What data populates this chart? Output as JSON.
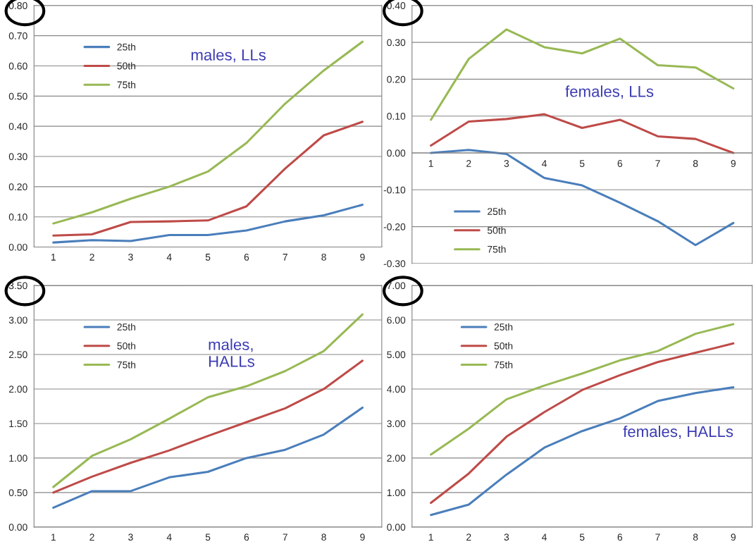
{
  "chart_data": [
    {
      "type": "line",
      "categories": [
        "1",
        "2",
        "3",
        "4",
        "5",
        "6",
        "7",
        "8",
        "9"
      ],
      "ylim": [
        0,
        0.8
      ],
      "yticks": [
        {
          "value": 0,
          "label": "0.00"
        },
        {
          "value": 0.1,
          "label": "0.10"
        },
        {
          "value": 0.2,
          "label": "0.20"
        },
        {
          "value": 0.3,
          "label": "0.30"
        },
        {
          "value": 0.4,
          "label": "0.40"
        },
        {
          "value": 0.5,
          "label": "0.50"
        },
        {
          "value": 0.6,
          "label": "0.60"
        },
        {
          "value": 0.7,
          "label": "0.70"
        },
        {
          "value": 0.8,
          "label": "0.80"
        }
      ],
      "grid": "y",
      "legend": "top left",
      "annotations": [
        "males, LLs"
      ],
      "series": [
        {
          "name": "25th",
          "color": "#4a7ebb",
          "values": [
            0.015,
            0.023,
            0.02,
            0.04,
            0.04,
            0.055,
            0.085,
            0.105,
            0.14
          ]
        },
        {
          "name": "50th",
          "color": "#be4b48",
          "values": [
            0.038,
            0.042,
            0.083,
            0.085,
            0.088,
            0.135,
            0.26,
            0.37,
            0.415
          ]
        },
        {
          "name": "75th",
          "color": "#98b954",
          "values": [
            0.078,
            0.115,
            0.16,
            0.2,
            0.25,
            0.345,
            0.475,
            0.585,
            0.68
          ]
        }
      ]
    },
    {
      "type": "line",
      "categories": [
        "1",
        "2",
        "3",
        "4",
        "5",
        "6",
        "7",
        "8",
        "9"
      ],
      "ylim": [
        -0.3,
        0.4
      ],
      "yticks": [
        {
          "value": -0.3,
          "label": "-0.30"
        },
        {
          "value": -0.2,
          "label": "-0.20"
        },
        {
          "value": -0.1,
          "label": "-0.10"
        },
        {
          "value": 0,
          "label": "0.00"
        },
        {
          "value": 0.1,
          "label": "0.10"
        },
        {
          "value": 0.2,
          "label": "0.20"
        },
        {
          "value": 0.3,
          "label": "0.30"
        },
        {
          "value": 0.4,
          "label": "0.40"
        }
      ],
      "grid": "y",
      "legend": "bottom left",
      "annotations": [
        "females, LLs"
      ],
      "series": [
        {
          "name": "25th",
          "color": "#4a7ebb",
          "values": [
            0.0,
            0.008,
            -0.003,
            -0.068,
            -0.088,
            -0.135,
            -0.185,
            -0.25,
            -0.19
          ]
        },
        {
          "name": "50th",
          "color": "#be4b48",
          "values": [
            0.02,
            0.085,
            0.092,
            0.105,
            0.068,
            0.09,
            0.045,
            0.038,
            0.0
          ]
        },
        {
          "name": "75th",
          "color": "#98b954",
          "values": [
            0.09,
            0.255,
            0.335,
            0.287,
            0.27,
            0.31,
            0.238,
            0.232,
            0.175
          ]
        }
      ]
    },
    {
      "type": "line",
      "categories": [
        "1",
        "2",
        "3",
        "4",
        "5",
        "6",
        "7",
        "8",
        "9"
      ],
      "ylim": [
        0,
        3.5
      ],
      "yticks": [
        {
          "value": 0,
          "label": "0.00"
        },
        {
          "value": 0.5,
          "label": "0.50"
        },
        {
          "value": 1,
          "label": "1.00"
        },
        {
          "value": 1.5,
          "label": "1.50"
        },
        {
          "value": 2,
          "label": "2.00"
        },
        {
          "value": 2.5,
          "label": "2.50"
        },
        {
          "value": 3,
          "label": "3.00"
        },
        {
          "value": 3.5,
          "label": "3.50"
        }
      ],
      "grid": "y",
      "legend": "top left",
      "annotations": [
        "males,\nHALLs"
      ],
      "series": [
        {
          "name": "25th",
          "color": "#4a7ebb",
          "values": [
            0.28,
            0.52,
            0.52,
            0.72,
            0.8,
            1.0,
            1.12,
            1.34,
            1.73
          ]
        },
        {
          "name": "50th",
          "color": "#be4b48",
          "values": [
            0.5,
            0.73,
            0.93,
            1.11,
            1.32,
            1.52,
            1.72,
            2.0,
            2.41
          ]
        },
        {
          "name": "75th",
          "color": "#98b954",
          "values": [
            0.58,
            1.03,
            1.27,
            1.57,
            1.88,
            2.04,
            2.26,
            2.55,
            3.08
          ]
        }
      ]
    },
    {
      "type": "line",
      "categories": [
        "1",
        "2",
        "3",
        "4",
        "5",
        "6",
        "7",
        "8",
        "9"
      ],
      "ylim": [
        0,
        7
      ],
      "yticks": [
        {
          "value": 0,
          "label": "0.00"
        },
        {
          "value": 1,
          "label": "1.00"
        },
        {
          "value": 2,
          "label": "2.00"
        },
        {
          "value": 3,
          "label": "3.00"
        },
        {
          "value": 4,
          "label": "4.00"
        },
        {
          "value": 5,
          "label": "5.00"
        },
        {
          "value": 6,
          "label": "6.00"
        },
        {
          "value": 7,
          "label": "7.00"
        }
      ],
      "grid": "y",
      "legend": "top left",
      "annotations": [
        "females, HALLs"
      ],
      "series": [
        {
          "name": "25th",
          "color": "#4a7ebb",
          "values": [
            0.35,
            0.65,
            1.52,
            2.3,
            2.78,
            3.15,
            3.65,
            3.88,
            4.05
          ]
        },
        {
          "name": "50th",
          "color": "#be4b48",
          "values": [
            0.7,
            1.55,
            2.62,
            3.33,
            3.97,
            4.4,
            4.78,
            5.05,
            5.32
          ]
        },
        {
          "name": "75th",
          "color": "#98b954",
          "values": [
            2.1,
            2.85,
            3.7,
            4.1,
            4.45,
            4.83,
            5.1,
            5.6,
            5.88
          ]
        }
      ]
    }
  ]
}
